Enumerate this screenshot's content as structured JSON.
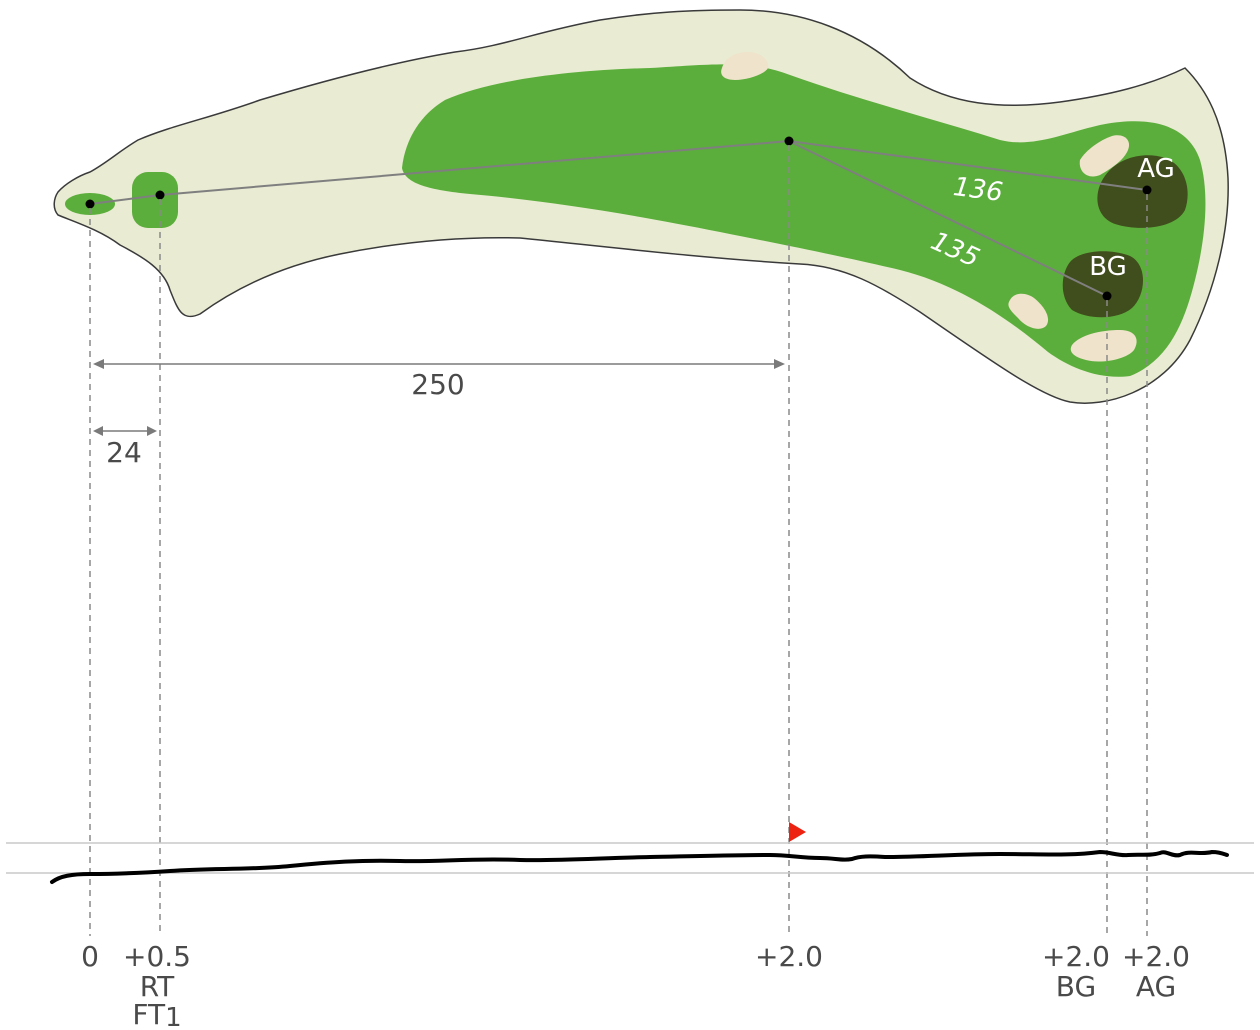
{
  "colors": {
    "rough": "#e9ebd3",
    "outline": "#3a3a3a",
    "fairway": "#5cae3c",
    "green": "#404d1d",
    "bunker": "#efe3cb",
    "flag": "#ee2211",
    "elevation_line": "#000000",
    "guide": "#8a8a8a"
  },
  "greens": {
    "ag_label": "AG",
    "bg_label": "BG"
  },
  "distances": {
    "to_ag": "136",
    "to_bg": "135",
    "tee_to_landing": "250",
    "back_to_front_tee": "24"
  },
  "elevation_labels": {
    "back_tee": "0",
    "front_tee": "+0.5",
    "landing": "+2.0",
    "bg": "+2.0",
    "ag": "+2.0"
  },
  "tee_labels": {
    "rt": "RT",
    "ft_prefix": "FT",
    "ft_sub": "1"
  },
  "green_labels": {
    "bg": "BG",
    "ag": "AG"
  },
  "icons": {
    "flag": "flag-icon"
  }
}
